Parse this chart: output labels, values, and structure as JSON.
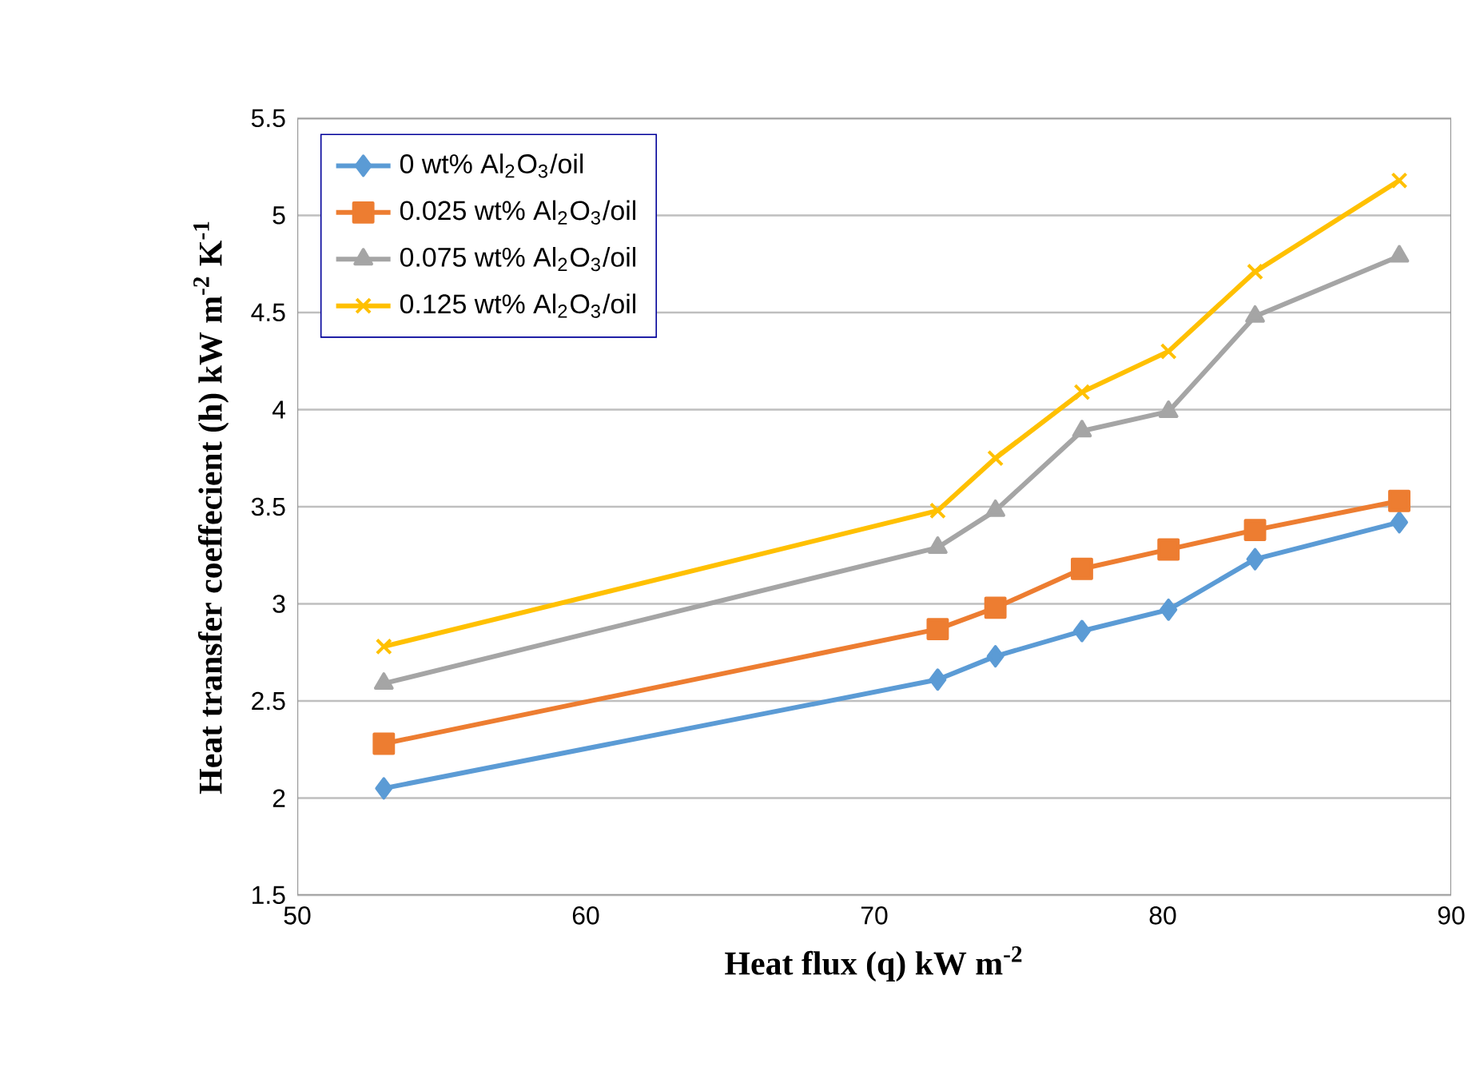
{
  "chart_data": {
    "type": "line",
    "xlabel": "Heat flux (q)  kW m$^{-2}$",
    "ylabel": "Heat transfer coeffecient (h)  kW m$^{-2}$ K$^{-1}$",
    "x": [
      53,
      72.2,
      74.2,
      77.2,
      80.2,
      83.2,
      88.2
    ],
    "series": [
      {
        "name": "0 wt%  Al$_{2}$O$_{3}$/oil",
        "color": "#5b9bd5",
        "marker": "diamond",
        "values": [
          2.05,
          2.61,
          2.73,
          2.86,
          2.97,
          3.23,
          3.42
        ]
      },
      {
        "name": "0.025 wt%  Al$_{2}$O$_{3}$/oil",
        "color": "#ed7d31",
        "marker": "square",
        "values": [
          2.28,
          2.87,
          2.98,
          3.18,
          3.28,
          3.38,
          3.53
        ]
      },
      {
        "name": "0.075 wt%  Al$_{2}$O$_{3}$/oil",
        "color": "#a5a5a5",
        "marker": "triangle",
        "values": [
          2.59,
          3.29,
          3.48,
          3.89,
          3.99,
          4.48,
          4.79
        ]
      },
      {
        "name": "0.125 wt%  Al$_{2}$O$_{3}$/oil",
        "color": "#ffc000",
        "marker": "cross",
        "values": [
          2.78,
          3.48,
          3.75,
          4.09,
          4.3,
          4.71,
          5.18
        ]
      }
    ],
    "xlim": [
      50,
      90
    ],
    "ylim": [
      1.5,
      5.5
    ],
    "xticks": [
      50,
      60,
      70,
      80,
      90
    ],
    "yticks": [
      1.5,
      2,
      2.5,
      3,
      3.5,
      4,
      4.5,
      5,
      5.5
    ],
    "grid": "y",
    "legend": "top left"
  }
}
